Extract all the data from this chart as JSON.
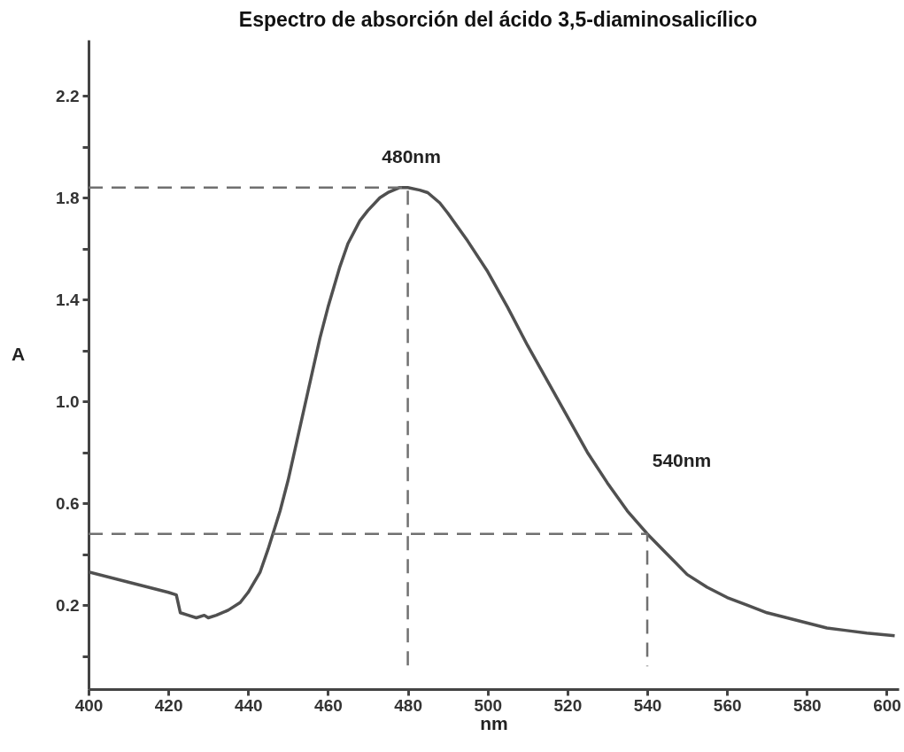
{
  "chart_data": {
    "type": "line",
    "title": "Espectro de absorción del ácido 3,5-diaminosalicílico",
    "xlabel": "nm",
    "ylabel": "A",
    "xlim": [
      400,
      603
    ],
    "ylim": [
      -0.13,
      2.42
    ],
    "xticks": [
      400,
      420,
      440,
      460,
      480,
      500,
      520,
      540,
      560,
      580,
      600
    ],
    "yticks": [
      {
        "value": 0,
        "label": null
      },
      0.2,
      {
        "value": 0.4,
        "label": null
      },
      0.6,
      {
        "value": 0.8,
        "label": null
      },
      {
        "value": 1,
        "label": "1.0"
      },
      {
        "value": 1.2,
        "label": null
      },
      1.4,
      {
        "value": 1.6,
        "label": null
      },
      1.8,
      {
        "value": 2.0,
        "label": null
      },
      2.2
    ],
    "marker": "none",
    "annotations": [
      {
        "text": "480nm",
        "x": 480,
        "y": 1.84
      },
      "540nm"
    ],
    "series": [
      {
        "color": "#505050",
        "line_style": "solid",
        "x": [
          400,
          410,
          420,
          422,
          423,
          425,
          427,
          429,
          430,
          432,
          435,
          438,
          440,
          443,
          445,
          448,
          450,
          453,
          455,
          458,
          460,
          463,
          465,
          468,
          470,
          473,
          475,
          478,
          480,
          483,
          485,
          488,
          490,
          495,
          500,
          505,
          510,
          515,
          520,
          525,
          530,
          535,
          540,
          545,
          550,
          555,
          560,
          565,
          570,
          575,
          580,
          585,
          590,
          595,
          602
        ],
        "values": [
          0.33,
          0.29,
          0.25,
          0.24,
          0.17,
          0.16,
          0.15,
          0.16,
          0.15,
          0.16,
          0.18,
          0.21,
          0.25,
          0.33,
          0.42,
          0.57,
          0.69,
          0.9,
          1.04,
          1.25,
          1.37,
          1.53,
          1.62,
          1.71,
          1.75,
          1.8,
          1.82,
          1.84,
          1.84,
          1.83,
          1.82,
          1.78,
          1.74,
          1.63,
          1.51,
          1.37,
          1.22,
          1.08,
          0.94,
          0.8,
          0.68,
          0.57,
          0.48,
          0.4,
          0.32,
          0.27,
          0.23,
          0.2,
          0.17,
          0.15,
          0.13,
          0.11,
          0.1,
          0.09,
          0.08
        ]
      },
      {
        "color": "#707070",
        "line_style": "dashed",
        "x": [
          400,
          480,
          480
        ],
        "values": [
          1.84,
          1.84,
          -0.04
        ]
      },
      {
        "color": "#707070",
        "line_style": "dashed",
        "x": [
          400,
          540,
          540
        ],
        "values": [
          0.48,
          0.48,
          -0.04
        ]
      }
    ]
  }
}
